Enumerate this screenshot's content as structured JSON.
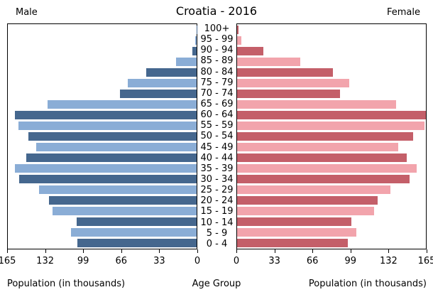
{
  "header": {
    "title": "Croatia - 2016",
    "left_label": "Male",
    "right_label": "Female"
  },
  "axis": {
    "max_value": 165,
    "male_ticks": [
      "165",
      "132",
      "99",
      "66",
      "33",
      "0"
    ],
    "female_ticks": [
      "0",
      "33",
      "66",
      "99",
      "132",
      "165"
    ],
    "male_axis_label": "Population (in thousands)",
    "female_axis_label": "Population (in thousands)",
    "center_axis_label": "Age Group"
  },
  "colors": {
    "male_dark": "#45678e",
    "male_light": "#8aadd6",
    "female_dark": "#c45f69",
    "female_light": "#f2a4ac",
    "border": "#000000"
  },
  "chart_data": {
    "type": "bar",
    "title": "Croatia - 2016",
    "orientation": "horizontal-pyramid",
    "xlabel": "Population (in thousands)",
    "center_label": "Age Group",
    "xlim": [
      0,
      165
    ],
    "grid": false,
    "categories": [
      "100+",
      "95 - 99",
      "90 - 94",
      "85 - 89",
      "80 - 84",
      "75 - 79",
      "70 - 74",
      "65 - 69",
      "60 - 64",
      "55 - 59",
      "50 - 54",
      "45 - 49",
      "40 - 44",
      "35 - 39",
      "30 - 34",
      "25 - 29",
      "20 - 24",
      "15 - 19",
      "10 - 14",
      "5 - 9",
      "0 - 4"
    ],
    "series": [
      {
        "name": "Male",
        "values": [
          0.3,
          1,
          4,
          18,
          44,
          60,
          67,
          130,
          159,
          156,
          147,
          140,
          149,
          159,
          155,
          138,
          129,
          126,
          105,
          110,
          104
        ]
      },
      {
        "name": "Female",
        "values": [
          1.5,
          4,
          23,
          55,
          84,
          98,
          90,
          139,
          167,
          164,
          154,
          141,
          148,
          157,
          151,
          134,
          123,
          120,
          100,
          104,
          97
        ]
      }
    ]
  }
}
